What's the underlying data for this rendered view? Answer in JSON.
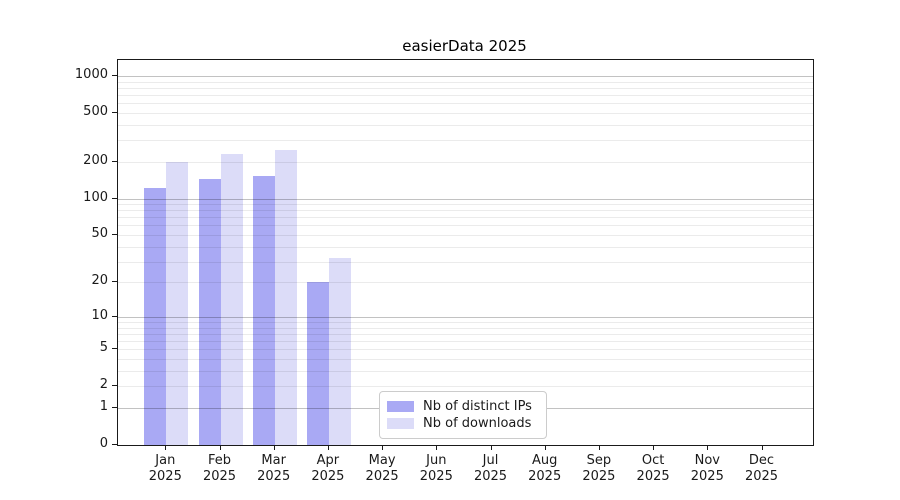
{
  "title": "easierData 2025",
  "year_label": "2025",
  "legend": {
    "items": [
      {
        "label": "Nb of distinct IPs",
        "color": "#a9a9f4"
      },
      {
        "label": "Nb of downloads",
        "color": "#dcdcf8"
      }
    ]
  },
  "chart_data": {
    "type": "bar",
    "title": "easierData 2025",
    "categories": [
      "Jan 2025",
      "Feb 2025",
      "Mar 2025",
      "Apr 2025",
      "May 2025",
      "Jun 2025",
      "Jul 2025",
      "Aug 2025",
      "Sep 2025",
      "Oct 2025",
      "Nov 2025",
      "Dec 2025"
    ],
    "series": [
      {
        "name": "Nb of distinct IPs",
        "color": "#a9a9f4",
        "values": [
          122,
          145,
          152,
          20,
          0,
          0,
          0,
          0,
          0,
          0,
          0,
          0
        ]
      },
      {
        "name": "Nb of downloads",
        "color": "#dcdcf8",
        "values": [
          198,
          230,
          250,
          32,
          0,
          0,
          0,
          0,
          0,
          0,
          0,
          0
        ]
      }
    ],
    "xlabel": "",
    "ylabel": "",
    "yscale": "log-like (log10 of value+1), 0 at baseline",
    "ylim": [
      0,
      1400
    ],
    "ytick_labels": [
      "1000",
      "500",
      "200",
      "100",
      "50",
      "20",
      "10",
      "5",
      "2",
      "1",
      "0"
    ],
    "ytick_values": [
      1000,
      500,
      200,
      100,
      50,
      20,
      10,
      5,
      2,
      1,
      0
    ],
    "major_gridlines": [
      1000,
      100,
      10,
      1
    ],
    "minor_gridlines": [
      900,
      800,
      700,
      600,
      500,
      400,
      300,
      200,
      90,
      80,
      70,
      60,
      50,
      40,
      30,
      20,
      9,
      8,
      7,
      6,
      5,
      4,
      3,
      2
    ],
    "grid": "both",
    "legend_position": "lower center-left inside plot"
  }
}
